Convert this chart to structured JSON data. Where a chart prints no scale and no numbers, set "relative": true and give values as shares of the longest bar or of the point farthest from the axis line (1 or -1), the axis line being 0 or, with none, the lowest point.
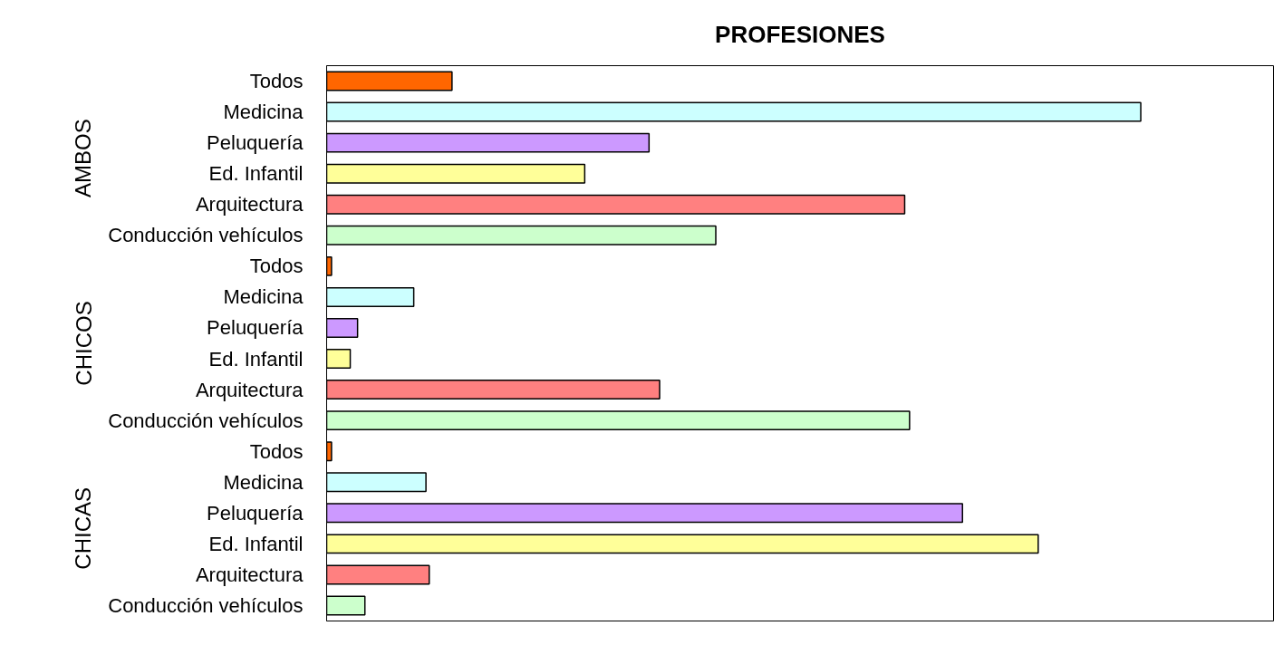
{
  "chart_data": {
    "type": "bar",
    "orientation": "horizontal",
    "relative": true,
    "title": "PROFESIONES",
    "categories": [
      "Todos",
      "Medicina",
      "Peluquería",
      "Ed. Infantil",
      "Arquitectura",
      "Conducción vehículos",
      "Todos",
      "Medicina",
      "Peluquería",
      "Ed. Infantil",
      "Arquitectura",
      "Conducción vehículos",
      "Todos",
      "Medicina",
      "Peluquería",
      "Ed. Infantil",
      "Arquitectura",
      "Conducción vehículos"
    ],
    "values": [
      0.154,
      1,
      0.396,
      0.317,
      0.71,
      0.478,
      0.006,
      0.107,
      0.038,
      0.029,
      0.409,
      0.716,
      0.006,
      0.122,
      0.781,
      0.874,
      0.126,
      0.047
    ],
    "colors": [
      "#ff6600",
      "#ccffff",
      "#cc99ff",
      "#ffff99",
      "#ff8080",
      "#ccffcc",
      "#ff6600",
      "#ccffff",
      "#cc99ff",
      "#ffff99",
      "#ff8080",
      "#ccffcc",
      "#ff6600",
      "#ccffff",
      "#cc99ff",
      "#ffff99",
      "#ff8080",
      "#ccffcc"
    ],
    "annotations": [
      "AMBOS",
      "CHICOS",
      "CHICAS"
    ]
  }
}
